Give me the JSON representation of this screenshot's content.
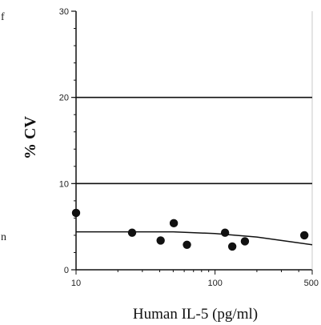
{
  "chart_data": {
    "type": "scatter",
    "title": "",
    "xlabel": "Human IL-5 (pg/ml)",
    "ylabel": "% CV",
    "x_scale": "log",
    "xlim": [
      10,
      500
    ],
    "ylim": [
      0,
      30
    ],
    "x_ticks": [
      10,
      100,
      500
    ],
    "x_tick_labels": [
      "10",
      "100",
      "500"
    ],
    "y_ticks": [
      0,
      10,
      20,
      30
    ],
    "y_tick_labels": [
      "0",
      "10",
      "20",
      "30"
    ],
    "reference_lines": [
      10,
      20
    ],
    "grid": false,
    "legend": "none",
    "points": [
      {
        "x": 10,
        "y": 6.6
      },
      {
        "x": 25.3,
        "y": 4.3
      },
      {
        "x": 40.6,
        "y": 3.4
      },
      {
        "x": 50.5,
        "y": 5.4
      },
      {
        "x": 62.8,
        "y": 2.9
      },
      {
        "x": 118,
        "y": 4.3
      },
      {
        "x": 133,
        "y": 2.7
      },
      {
        "x": 164,
        "y": 3.3
      },
      {
        "x": 439,
        "y": 4.0
      }
    ],
    "fit_curve": [
      {
        "x": 10,
        "y": 4.4
      },
      {
        "x": 50,
        "y": 4.4
      },
      {
        "x": 100,
        "y": 4.2
      },
      {
        "x": 200,
        "y": 3.8
      },
      {
        "x": 300,
        "y": 3.4
      },
      {
        "x": 500,
        "y": 2.9
      }
    ],
    "colors": {
      "marks": "#111111",
      "background": "#ffffff"
    }
  },
  "edge_text": {
    "top_left": "f",
    "bottom_left": "n"
  }
}
